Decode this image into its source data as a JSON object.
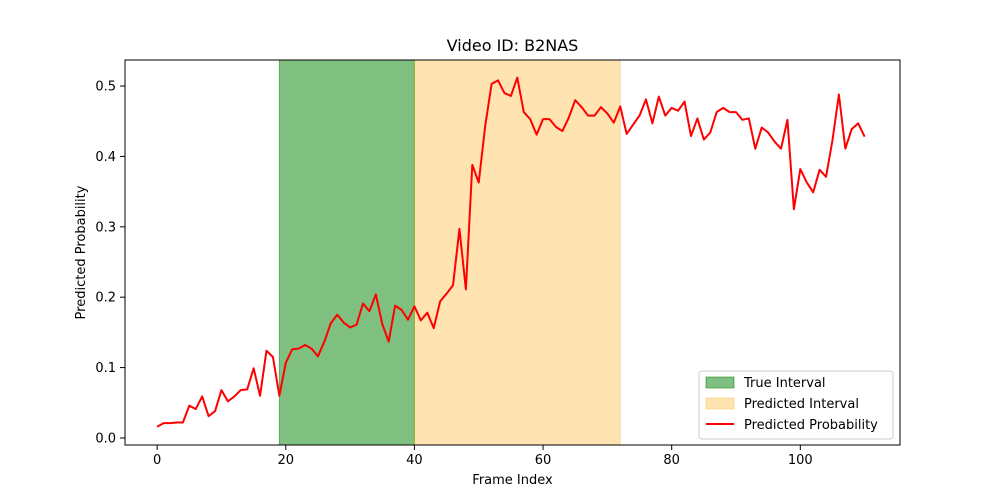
{
  "chart_data": {
    "type": "line",
    "title": "Video ID: B2NAS",
    "xlabel": "Frame Index",
    "ylabel": "Predicted Probability",
    "xlim": [
      -5,
      115.5
    ],
    "ylim": [
      -0.01,
      0.537
    ],
    "xticks": [
      0,
      20,
      40,
      60,
      80,
      100
    ],
    "yticks": [
      0.0,
      0.1,
      0.2,
      0.3,
      0.4,
      0.5
    ],
    "xtick_labels": [
      "0",
      "20",
      "40",
      "60",
      "80",
      "100"
    ],
    "ytick_labels": [
      "0.0",
      "0.1",
      "0.2",
      "0.3",
      "0.4",
      "0.5"
    ],
    "grid": false,
    "legend_position": "lower-right",
    "intervals": [
      {
        "name": "True Interval",
        "start": 19,
        "end": 40,
        "color": "#008000",
        "alpha": 0.5
      },
      {
        "name": "Predicted Interval",
        "start": 40,
        "end": 72,
        "color": "#ffa500",
        "alpha": 0.3
      }
    ],
    "series": [
      {
        "name": "Predicted Probability",
        "color": "#ff0000",
        "x": [
          0,
          1,
          2,
          3,
          4,
          5,
          6,
          7,
          8,
          9,
          10,
          11,
          12,
          13,
          14,
          15,
          16,
          17,
          18,
          19,
          20,
          21,
          22,
          23,
          24,
          25,
          26,
          27,
          28,
          29,
          30,
          31,
          32,
          33,
          34,
          35,
          36,
          37,
          38,
          39,
          40,
          41,
          42,
          43,
          44,
          45,
          46,
          47,
          48,
          49,
          50,
          51,
          52,
          53,
          54,
          55,
          56,
          57,
          58,
          59,
          60,
          61,
          62,
          63,
          64,
          65,
          66,
          67,
          68,
          69,
          70,
          71,
          72,
          73,
          74,
          75,
          76,
          77,
          78,
          79,
          80,
          81,
          82,
          83,
          84,
          85,
          86,
          87,
          88,
          89,
          90,
          91,
          92,
          93,
          94,
          95,
          96,
          97,
          98,
          99,
          100,
          101,
          102,
          103,
          104,
          105,
          106,
          107,
          108,
          109,
          110
        ],
        "values": [
          0.016,
          0.021,
          0.021,
          0.022,
          0.022,
          0.046,
          0.041,
          0.059,
          0.031,
          0.038,
          0.068,
          0.052,
          0.059,
          0.068,
          0.069,
          0.099,
          0.06,
          0.124,
          0.115,
          0.06,
          0.107,
          0.126,
          0.127,
          0.132,
          0.127,
          0.116,
          0.137,
          0.163,
          0.175,
          0.164,
          0.157,
          0.161,
          0.191,
          0.18,
          0.204,
          0.162,
          0.137,
          0.188,
          0.182,
          0.168,
          0.187,
          0.167,
          0.178,
          0.156,
          0.194,
          0.205,
          0.217,
          0.297,
          0.211,
          0.388,
          0.363,
          0.443,
          0.503,
          0.508,
          0.49,
          0.486,
          0.512,
          0.463,
          0.453,
          0.431,
          0.453,
          0.453,
          0.442,
          0.436,
          0.455,
          0.48,
          0.47,
          0.458,
          0.458,
          0.47,
          0.461,
          0.448,
          0.471,
          0.432,
          0.445,
          0.458,
          0.481,
          0.447,
          0.485,
          0.458,
          0.469,
          0.465,
          0.478,
          0.429,
          0.454,
          0.424,
          0.434,
          0.463,
          0.469,
          0.463,
          0.463,
          0.452,
          0.454,
          0.411,
          0.441,
          0.434,
          0.421,
          0.411,
          0.452,
          0.325,
          0.382,
          0.363,
          0.349,
          0.381,
          0.371,
          0.423,
          0.488,
          0.411,
          0.439,
          0.447,
          0.428
        ]
      }
    ]
  }
}
